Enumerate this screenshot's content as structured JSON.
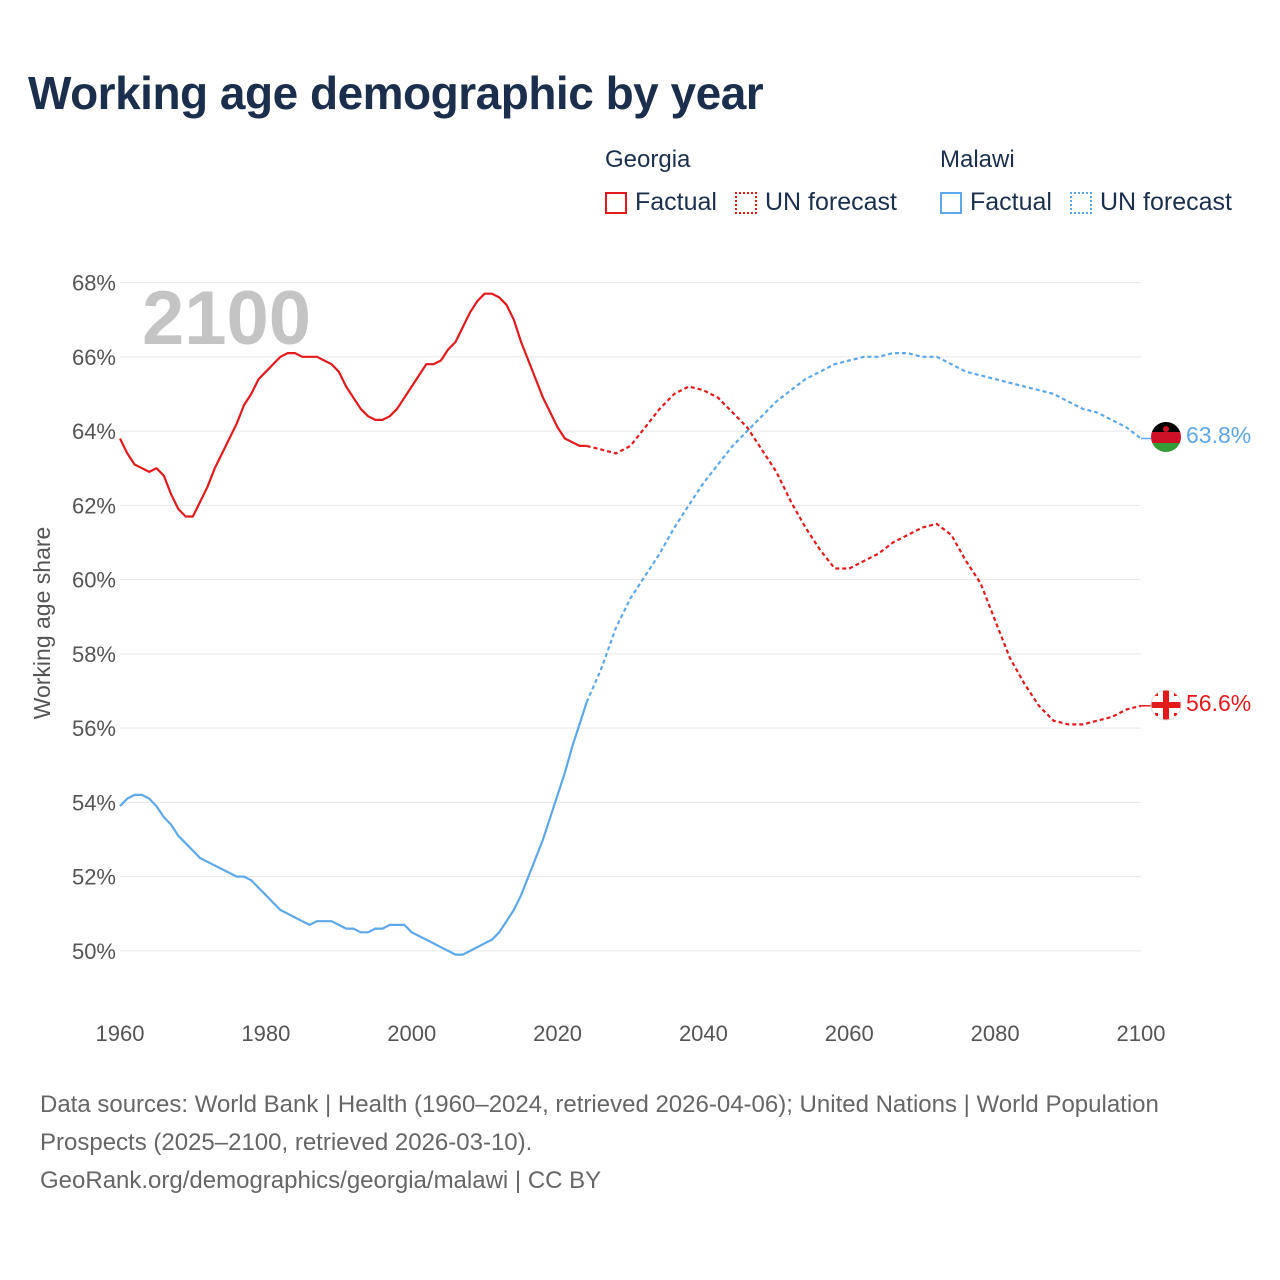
{
  "title": "Working age demographic by year",
  "legend": {
    "groups": [
      {
        "name": "Georgia",
        "color": "#e31a1c",
        "factual": "Factual",
        "forecast": "UN forecast"
      },
      {
        "name": "Malawi",
        "color": "#5da8e8",
        "factual": "Factual",
        "forecast": "UN forecast"
      }
    ]
  },
  "colors": {
    "georgia": "#e31a1c",
    "malawi": "#5da8e8",
    "grid": "#e6e6e6",
    "title": "#1b2f4d"
  },
  "icons": {
    "georgia_flag": "georgia-flag-icon",
    "malawi_flag": "malawi-flag-icon"
  },
  "chart_data": {
    "type": "line",
    "title": "Working age demographic by year",
    "xlabel": "",
    "ylabel": "Working age share",
    "xlim": [
      1960,
      2100
    ],
    "ylim": [
      49,
      68.5
    ],
    "x_ticks": [
      1960,
      1980,
      2000,
      2020,
      2040,
      2060,
      2080,
      2100
    ],
    "y_ticks": [
      50,
      52,
      54,
      56,
      58,
      60,
      62,
      64,
      66,
      68
    ],
    "y_tick_labels": [
      "50%",
      "52%",
      "54%",
      "56%",
      "58%",
      "60%",
      "62%",
      "64%",
      "66%",
      "68%"
    ],
    "x_tick_labels": [
      "1960",
      "1980",
      "2000",
      "2020",
      "2040",
      "2060",
      "2080",
      "2100"
    ],
    "year_overlay": "2100",
    "factual_end_year": 2024,
    "series": [
      {
        "name": "Georgia",
        "end_label": "56.6%",
        "factual": {
          "x": [
            1960,
            1961,
            1962,
            1963,
            1964,
            1965,
            1966,
            1967,
            1968,
            1969,
            1970,
            1971,
            1972,
            1973,
            1974,
            1975,
            1976,
            1977,
            1978,
            1979,
            1980,
            1981,
            1982,
            1983,
            1984,
            1985,
            1986,
            1987,
            1988,
            1989,
            1990,
            1991,
            1992,
            1993,
            1994,
            1995,
            1996,
            1997,
            1998,
            1999,
            2000,
            2001,
            2002,
            2003,
            2004,
            2005,
            2006,
            2007,
            2008,
            2009,
            2010,
            2011,
            2012,
            2013,
            2014,
            2015,
            2016,
            2017,
            2018,
            2019,
            2020,
            2021,
            2022,
            2023,
            2024
          ],
          "y": [
            63.8,
            63.4,
            63.1,
            63.0,
            62.9,
            63.0,
            62.8,
            62.3,
            61.9,
            61.7,
            61.7,
            62.1,
            62.5,
            63.0,
            63.4,
            63.8,
            64.2,
            64.7,
            65.0,
            65.4,
            65.6,
            65.8,
            66.0,
            66.1,
            66.1,
            66.0,
            66.0,
            66.0,
            65.9,
            65.8,
            65.6,
            65.2,
            64.9,
            64.6,
            64.4,
            64.3,
            64.3,
            64.4,
            64.6,
            64.9,
            65.2,
            65.5,
            65.8,
            65.8,
            65.9,
            66.2,
            66.4,
            66.8,
            67.2,
            67.5,
            67.7,
            67.7,
            67.6,
            67.4,
            67.0,
            66.4,
            65.9,
            65.4,
            64.9,
            64.5,
            64.1,
            63.8,
            63.7,
            63.6,
            63.6
          ]
        },
        "forecast": {
          "x": [
            2024,
            2026,
            2028,
            2030,
            2032,
            2034,
            2036,
            2038,
            2040,
            2042,
            2044,
            2046,
            2048,
            2050,
            2052,
            2054,
            2056,
            2058,
            2060,
            2062,
            2064,
            2066,
            2068,
            2070,
            2072,
            2074,
            2076,
            2078,
            2080,
            2082,
            2084,
            2086,
            2088,
            2090,
            2092,
            2094,
            2096,
            2098,
            2100
          ],
          "y": [
            63.6,
            63.5,
            63.4,
            63.6,
            64.1,
            64.6,
            65.0,
            65.2,
            65.1,
            64.9,
            64.5,
            64.1,
            63.5,
            62.9,
            62.1,
            61.4,
            60.8,
            60.3,
            60.3,
            60.5,
            60.7,
            61.0,
            61.2,
            61.4,
            61.5,
            61.2,
            60.5,
            59.9,
            58.9,
            57.9,
            57.2,
            56.6,
            56.2,
            56.1,
            56.1,
            56.2,
            56.3,
            56.5,
            56.6
          ]
        }
      },
      {
        "name": "Malawi",
        "end_label": "63.8%",
        "factual": {
          "x": [
            1960,
            1961,
            1962,
            1963,
            1964,
            1965,
            1966,
            1967,
            1968,
            1969,
            1970,
            1971,
            1972,
            1973,
            1974,
            1975,
            1976,
            1977,
            1978,
            1979,
            1980,
            1981,
            1982,
            1983,
            1984,
            1985,
            1986,
            1987,
            1988,
            1989,
            1990,
            1991,
            1992,
            1993,
            1994,
            1995,
            1996,
            1997,
            1998,
            1999,
            2000,
            2001,
            2002,
            2003,
            2004,
            2005,
            2006,
            2007,
            2008,
            2009,
            2010,
            2011,
            2012,
            2013,
            2014,
            2015,
            2016,
            2017,
            2018,
            2019,
            2020,
            2021,
            2022,
            2023,
            2024
          ],
          "y": [
            53.9,
            54.1,
            54.2,
            54.2,
            54.1,
            53.9,
            53.6,
            53.4,
            53.1,
            52.9,
            52.7,
            52.5,
            52.4,
            52.3,
            52.2,
            52.1,
            52.0,
            52.0,
            51.9,
            51.7,
            51.5,
            51.3,
            51.1,
            51.0,
            50.9,
            50.8,
            50.7,
            50.8,
            50.8,
            50.8,
            50.7,
            50.6,
            50.6,
            50.5,
            50.5,
            50.6,
            50.6,
            50.7,
            50.7,
            50.7,
            50.5,
            50.4,
            50.3,
            50.2,
            50.1,
            50.0,
            49.9,
            49.9,
            50.0,
            50.1,
            50.2,
            50.3,
            50.5,
            50.8,
            51.1,
            51.5,
            52.0,
            52.5,
            53.0,
            53.6,
            54.2,
            54.8,
            55.5,
            56.1,
            56.7
          ]
        },
        "forecast": {
          "x": [
            2024,
            2026,
            2028,
            2030,
            2032,
            2034,
            2036,
            2038,
            2040,
            2042,
            2044,
            2046,
            2048,
            2050,
            2052,
            2054,
            2056,
            2058,
            2060,
            2062,
            2064,
            2066,
            2068,
            2070,
            2072,
            2074,
            2076,
            2078,
            2080,
            2082,
            2084,
            2086,
            2088,
            2090,
            2092,
            2094,
            2096,
            2098,
            2100
          ],
          "y": [
            56.7,
            57.6,
            58.7,
            59.5,
            60.1,
            60.7,
            61.4,
            62.0,
            62.6,
            63.1,
            63.6,
            64.0,
            64.4,
            64.8,
            65.1,
            65.4,
            65.6,
            65.8,
            65.9,
            66.0,
            66.0,
            66.1,
            66.1,
            66.0,
            66.0,
            65.8,
            65.6,
            65.5,
            65.4,
            65.3,
            65.2,
            65.1,
            65.0,
            64.8,
            64.6,
            64.5,
            64.3,
            64.1,
            63.8
          ]
        }
      }
    ]
  },
  "footer": {
    "sources": "Data sources: World Bank | Health (1960–2024, retrieved 2026-04-06); United Nations | World Population Prospects (2025–2100, retrieved 2026-03-10).",
    "credit": "GeoRank.org/demographics/georgia/malawi | CC BY"
  }
}
